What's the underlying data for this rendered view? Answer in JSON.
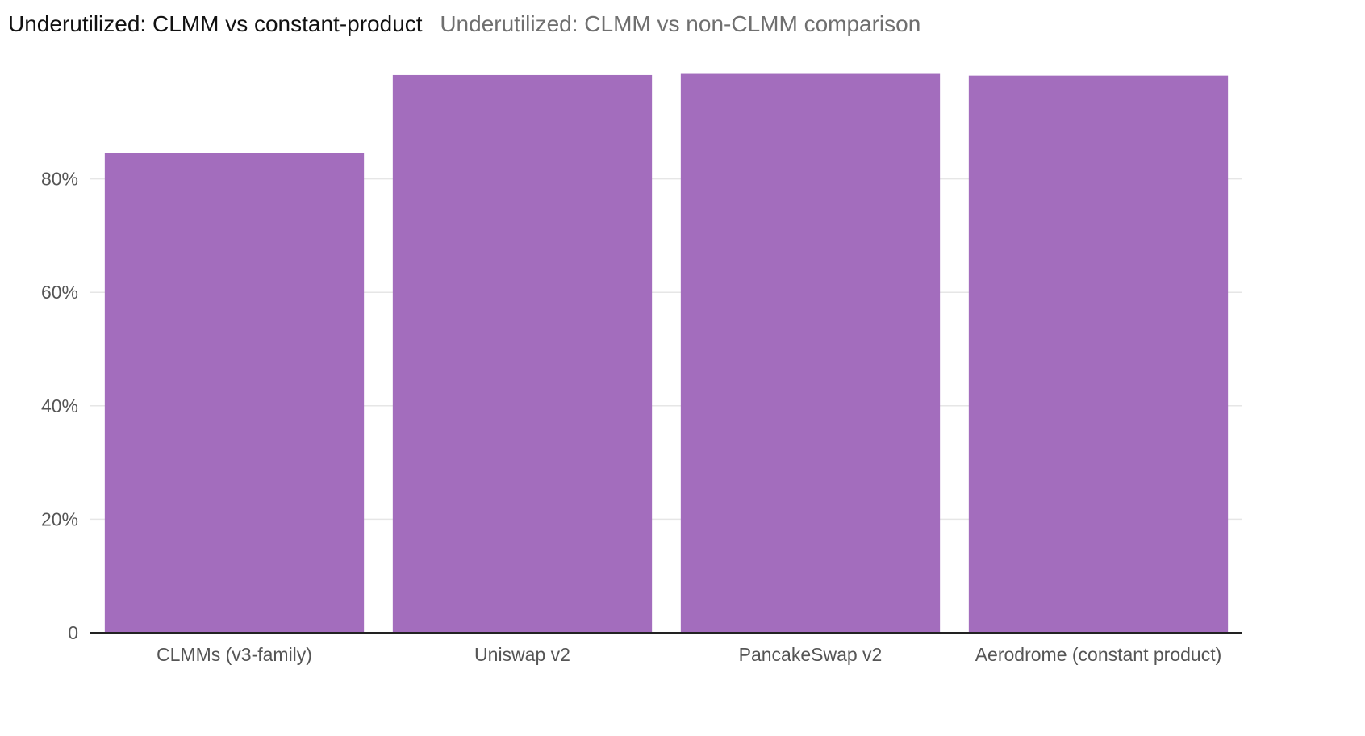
{
  "chart_data": {
    "type": "bar",
    "title": "Underutilized: CLMM vs constant-product",
    "subtitle": "Underutilized: CLMM vs non-CLMM comparison",
    "categories": [
      "CLMMs (v3-family)",
      "Uniswap v2",
      "PancakeSwap v2",
      "Aerodrome (constant product)"
    ],
    "values": [
      84.5,
      98.3,
      98.5,
      98.2
    ],
    "value_unit": "%",
    "ylim": [
      0,
      100
    ],
    "yticks": [
      0,
      20,
      40,
      60,
      80
    ],
    "ytick_labels": [
      "0",
      "20%",
      "40%",
      "60%",
      "80%"
    ],
    "xlabel": "",
    "ylabel": "",
    "grid": true,
    "colors": {
      "bar": "#A36DBD",
      "grid": "#e6e6e6",
      "axis": "#222222"
    }
  }
}
